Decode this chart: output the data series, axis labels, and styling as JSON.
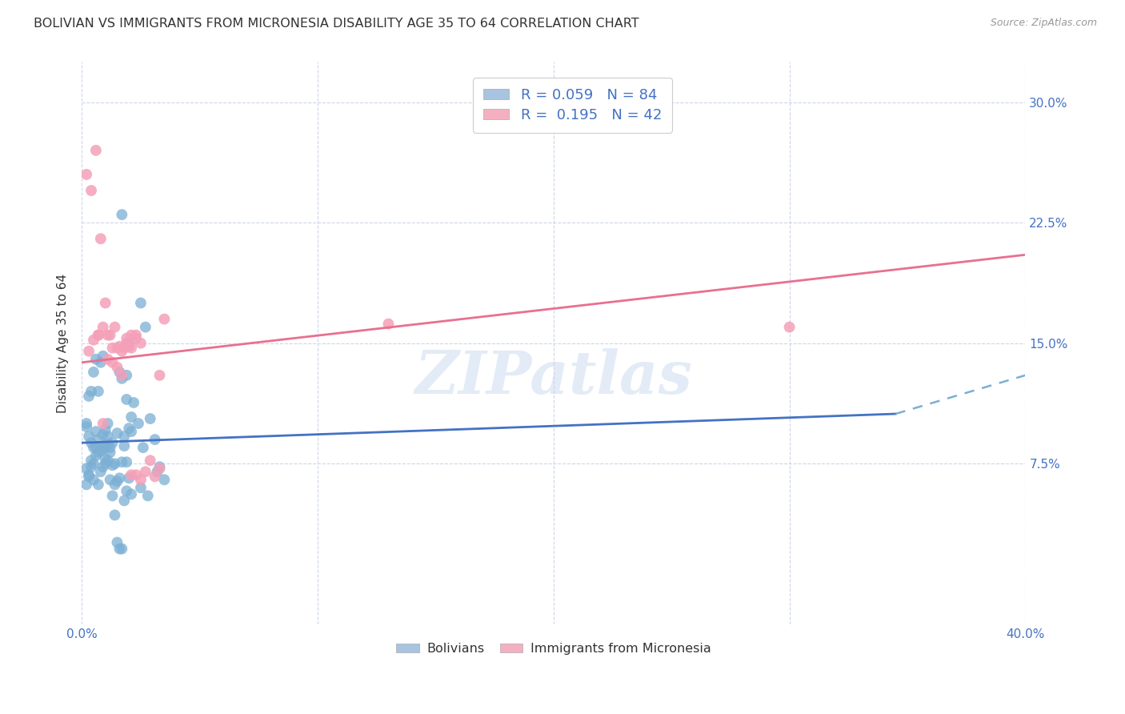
{
  "title": "BOLIVIAN VS IMMIGRANTS FROM MICRONESIA DISABILITY AGE 35 TO 64 CORRELATION CHART",
  "source": "Source: ZipAtlas.com",
  "ylabel": "Disability Age 35 to 64",
  "xmin": 0.0,
  "xmax": 0.4,
  "ymin": -0.025,
  "ymax": 0.325,
  "ytick_positions": [
    0.075,
    0.15,
    0.225,
    0.3
  ],
  "ytick_labels": [
    "7.5%",
    "15.0%",
    "22.5%",
    "30.0%"
  ],
  "xtick_positions": [
    0.0,
    0.1,
    0.2,
    0.3,
    0.4
  ],
  "xtick_labels": [
    "0.0%",
    "",
    "",
    "",
    "40.0%"
  ],
  "bolivians_color": "#7bafd4",
  "micronesia_color": "#f4a0b8",
  "bolivians_scatter_x": [
    0.002,
    0.003,
    0.004,
    0.005,
    0.006,
    0.007,
    0.008,
    0.009,
    0.01,
    0.011,
    0.012,
    0.013,
    0.014,
    0.015,
    0.016,
    0.017,
    0.018,
    0.019,
    0.02,
    0.021,
    0.002,
    0.003,
    0.004,
    0.005,
    0.006,
    0.007,
    0.008,
    0.009,
    0.01,
    0.011,
    0.012,
    0.013,
    0.014,
    0.015,
    0.016,
    0.017,
    0.018,
    0.019,
    0.02,
    0.021,
    0.002,
    0.003,
    0.004,
    0.005,
    0.006,
    0.007,
    0.008,
    0.009,
    0.01,
    0.011,
    0.012,
    0.013,
    0.014,
    0.015,
    0.016,
    0.017,
    0.018,
    0.019,
    0.02,
    0.021,
    0.002,
    0.003,
    0.004,
    0.005,
    0.006,
    0.007,
    0.008,
    0.009,
    0.01,
    0.011,
    0.025,
    0.028,
    0.032,
    0.035,
    0.025,
    0.027,
    0.029,
    0.031,
    0.022,
    0.024,
    0.026,
    0.033,
    0.019,
    0.017
  ],
  "bolivians_scatter_y": [
    0.098,
    0.092,
    0.088,
    0.085,
    0.095,
    0.09,
    0.083,
    0.093,
    0.078,
    0.087,
    0.082,
    0.088,
    0.075,
    0.094,
    0.132,
    0.128,
    0.092,
    0.13,
    0.097,
    0.095,
    0.072,
    0.068,
    0.073,
    0.065,
    0.08,
    0.062,
    0.07,
    0.086,
    0.096,
    0.1,
    0.085,
    0.074,
    0.043,
    0.026,
    0.022,
    0.022,
    0.052,
    0.058,
    0.15,
    0.104,
    0.1,
    0.117,
    0.12,
    0.132,
    0.14,
    0.12,
    0.138,
    0.142,
    0.085,
    0.077,
    0.065,
    0.055,
    0.062,
    0.064,
    0.066,
    0.076,
    0.086,
    0.076,
    0.066,
    0.056,
    0.062,
    0.067,
    0.077,
    0.075,
    0.085,
    0.082,
    0.083,
    0.073,
    0.075,
    0.092,
    0.06,
    0.055,
    0.07,
    0.065,
    0.175,
    0.16,
    0.103,
    0.09,
    0.113,
    0.1,
    0.085,
    0.073,
    0.115,
    0.23
  ],
  "micronesia_scatter_x": [
    0.002,
    0.004,
    0.006,
    0.008,
    0.01,
    0.012,
    0.014,
    0.016,
    0.018,
    0.02,
    0.003,
    0.005,
    0.007,
    0.009,
    0.011,
    0.013,
    0.015,
    0.017,
    0.019,
    0.021,
    0.023,
    0.025,
    0.027,
    0.029,
    0.031,
    0.033,
    0.035,
    0.021,
    0.023,
    0.025,
    0.007,
    0.009,
    0.011,
    0.013,
    0.015,
    0.017,
    0.019,
    0.021,
    0.023,
    0.3,
    0.033,
    0.13
  ],
  "micronesia_scatter_y": [
    0.255,
    0.245,
    0.27,
    0.215,
    0.175,
    0.155,
    0.16,
    0.148,
    0.147,
    0.148,
    0.145,
    0.152,
    0.155,
    0.1,
    0.155,
    0.147,
    0.147,
    0.145,
    0.15,
    0.068,
    0.068,
    0.065,
    0.07,
    0.077,
    0.067,
    0.13,
    0.165,
    0.155,
    0.155,
    0.15,
    0.155,
    0.16,
    0.14,
    0.138,
    0.135,
    0.13,
    0.153,
    0.147,
    0.153,
    0.16,
    0.072,
    0.162
  ],
  "bolivians_solid_line": {
    "x": [
      0.0,
      0.345
    ],
    "y": [
      0.088,
      0.106
    ]
  },
  "bolivians_dashed_line": {
    "x": [
      0.345,
      0.4
    ],
    "y": [
      0.106,
      0.13
    ]
  },
  "micronesia_solid_line": {
    "x": [
      0.0,
      0.4
    ],
    "y": [
      0.138,
      0.205
    ]
  },
  "watermark": "ZIPatlas",
  "background_color": "#ffffff",
  "grid_color": "#ccd6e8",
  "legend_box_colors": [
    "#a8c4e0",
    "#f4b0c0"
  ],
  "legend_labels": [
    "R = 0.059   N = 84",
    "R =  0.195   N = 42"
  ],
  "bottom_legend_labels": [
    "Bolivians",
    "Immigrants from Micronesia"
  ]
}
